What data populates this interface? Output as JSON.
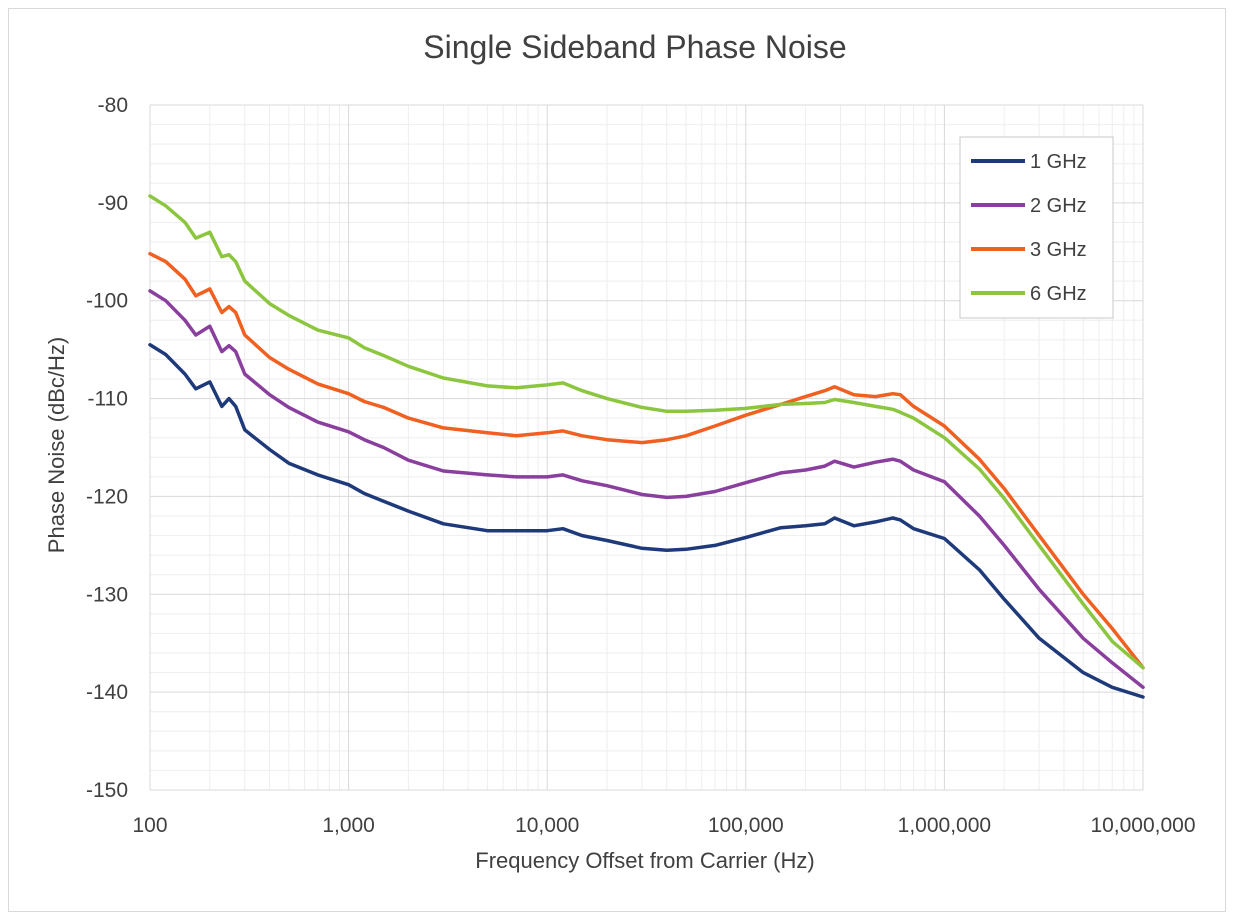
{
  "chart_data": {
    "type": "line",
    "title": "Single Sideband Phase Noise",
    "xlabel": "Frequency  Offset from Carrier (Hz)",
    "ylabel": "Phase Noise  (dBc/Hz)",
    "x_scale": "log",
    "xlim": [
      100,
      10000000
    ],
    "ylim": [
      -150,
      -80
    ],
    "x_ticks": [
      "100",
      "1,000",
      "10,000",
      "100,000",
      "1,000,000",
      "10,000,000"
    ],
    "y_ticks": [
      "-80",
      "-90",
      "-100",
      "-110",
      "-120",
      "-130",
      "-140",
      "-150"
    ],
    "grid": true,
    "legend_position": "top-right",
    "x": [
      100,
      120,
      150,
      170,
      200,
      230,
      250,
      270,
      300,
      400,
      500,
      700,
      1000,
      1200,
      1500,
      2000,
      3000,
      5000,
      7000,
      10000,
      12000,
      15000,
      20000,
      30000,
      40000,
      50000,
      70000,
      100000,
      150000,
      200000,
      250000,
      280000,
      350000,
      450000,
      550000,
      600000,
      700000,
      1000000,
      1500000,
      2000000,
      3000000,
      5000000,
      7000000,
      10000000
    ],
    "series": [
      {
        "name": "1 GHz",
        "color": "#1f3a7a",
        "values": [
          -104.5,
          -105.5,
          -107.5,
          -109.0,
          -108.3,
          -110.8,
          -110.0,
          -110.8,
          -113.2,
          -115.2,
          -116.6,
          -117.8,
          -118.8,
          -119.7,
          -120.5,
          -121.5,
          -122.8,
          -123.5,
          -123.5,
          -123.5,
          -123.3,
          -124.0,
          -124.5,
          -125.3,
          -125.5,
          -125.4,
          -125.0,
          -124.2,
          -123.2,
          -123.0,
          -122.8,
          -122.2,
          -123.0,
          -122.6,
          -122.2,
          -122.4,
          -123.3,
          -124.3,
          -127.5,
          -130.5,
          -134.5,
          -138.0,
          -139.5,
          -140.5
        ]
      },
      {
        "name": "2 GHz",
        "color": "#8a3f9e",
        "values": [
          -99.0,
          -100.0,
          -102.0,
          -103.5,
          -102.6,
          -105.2,
          -104.6,
          -105.2,
          -107.5,
          -109.6,
          -110.9,
          -112.4,
          -113.4,
          -114.2,
          -115.0,
          -116.3,
          -117.4,
          -117.8,
          -118.0,
          -118.0,
          -117.8,
          -118.4,
          -118.9,
          -119.8,
          -120.1,
          -120.0,
          -119.5,
          -118.6,
          -117.6,
          -117.3,
          -116.9,
          -116.4,
          -117.0,
          -116.5,
          -116.2,
          -116.4,
          -117.3,
          -118.5,
          -122.0,
          -125.0,
          -129.5,
          -134.5,
          -137.0,
          -139.5
        ]
      },
      {
        "name": "3 GHz",
        "color": "#f06020",
        "values": [
          -95.2,
          -96.0,
          -97.8,
          -99.5,
          -98.8,
          -101.2,
          -100.6,
          -101.2,
          -103.5,
          -105.8,
          -107.0,
          -108.5,
          -109.5,
          -110.3,
          -110.9,
          -112.0,
          -113.0,
          -113.5,
          -113.8,
          -113.5,
          -113.3,
          -113.8,
          -114.2,
          -114.5,
          -114.2,
          -113.8,
          -112.8,
          -111.7,
          -110.6,
          -109.8,
          -109.2,
          -108.8,
          -109.6,
          -109.8,
          -109.5,
          -109.6,
          -110.8,
          -112.8,
          -116.2,
          -119.2,
          -124.0,
          -130.0,
          -133.5,
          -137.5
        ]
      },
      {
        "name": "6 GHz",
        "color": "#8cc63e",
        "values": [
          -89.3,
          -90.3,
          -92.0,
          -93.6,
          -93.0,
          -95.5,
          -95.3,
          -96.0,
          -98.0,
          -100.3,
          -101.5,
          -103.0,
          -103.8,
          -104.8,
          -105.6,
          -106.7,
          -107.9,
          -108.7,
          -108.9,
          -108.6,
          -108.4,
          -109.2,
          -110.0,
          -110.9,
          -111.3,
          -111.3,
          -111.2,
          -111.0,
          -110.6,
          -110.5,
          -110.4,
          -110.1,
          -110.4,
          -110.8,
          -111.1,
          -111.4,
          -112.0,
          -114.0,
          -117.2,
          -120.2,
          -125.0,
          -131.0,
          -134.8,
          -137.5
        ]
      }
    ]
  }
}
